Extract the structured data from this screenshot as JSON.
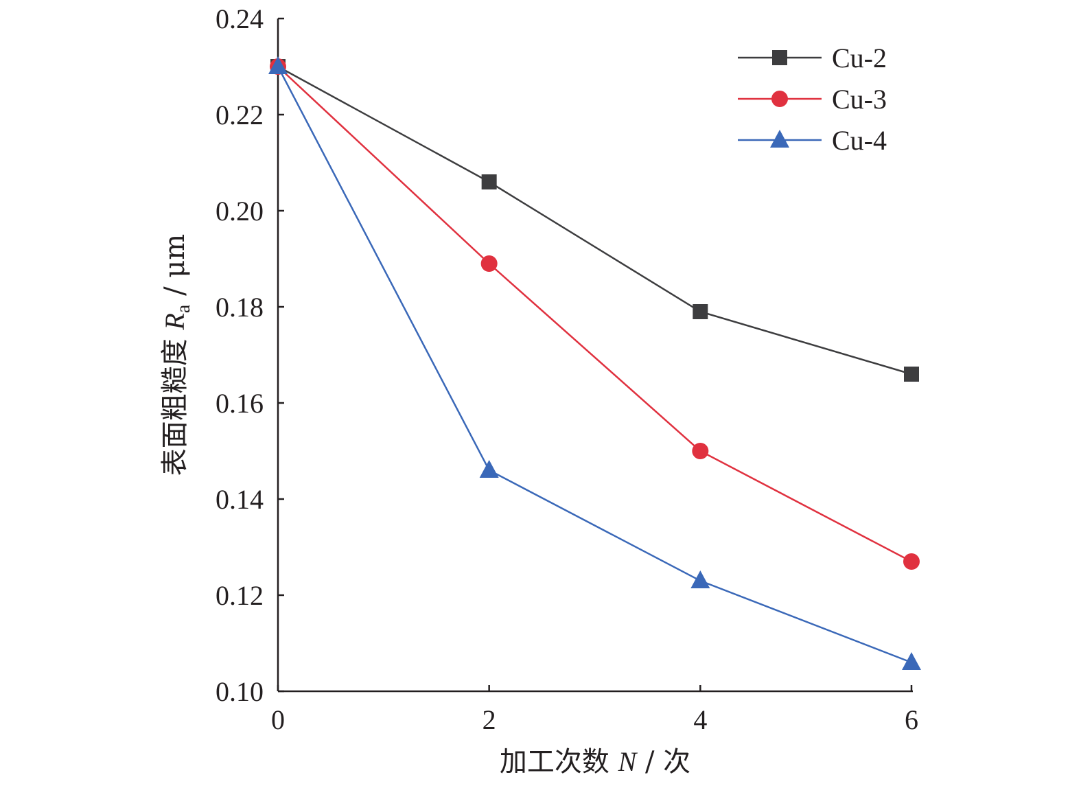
{
  "chart_data": {
    "type": "line",
    "x": [
      0,
      2,
      4,
      6
    ],
    "xlim": [
      0,
      6
    ],
    "ylim": [
      0.1,
      0.24
    ],
    "xticks": [
      "0",
      "2",
      "4",
      "6"
    ],
    "yticks": [
      "0.10",
      "0.12",
      "0.14",
      "0.16",
      "0.18",
      "0.20",
      "0.22",
      "0.24"
    ],
    "xlabel": {
      "prefix": "加工次数 ",
      "symbol": "N",
      "suffix": " / 次"
    },
    "ylabel": {
      "prefix": "表面粗糙度 ",
      "symbol": "R",
      "subscript": "a",
      "suffix": " / μm"
    },
    "grid": false,
    "legend_position": "top-right",
    "series": [
      {
        "name": "Cu-2",
        "marker": "square",
        "color": "#3d3d3f",
        "values": [
          0.23,
          0.206,
          0.179,
          0.166
        ]
      },
      {
        "name": "Cu-3",
        "marker": "circle",
        "color": "#e0313f",
        "values": [
          0.23,
          0.189,
          0.15,
          0.127
        ]
      },
      {
        "name": "Cu-4",
        "marker": "triangle",
        "color": "#3a68b8",
        "values": [
          0.23,
          0.146,
          0.123,
          0.106
        ]
      }
    ]
  }
}
